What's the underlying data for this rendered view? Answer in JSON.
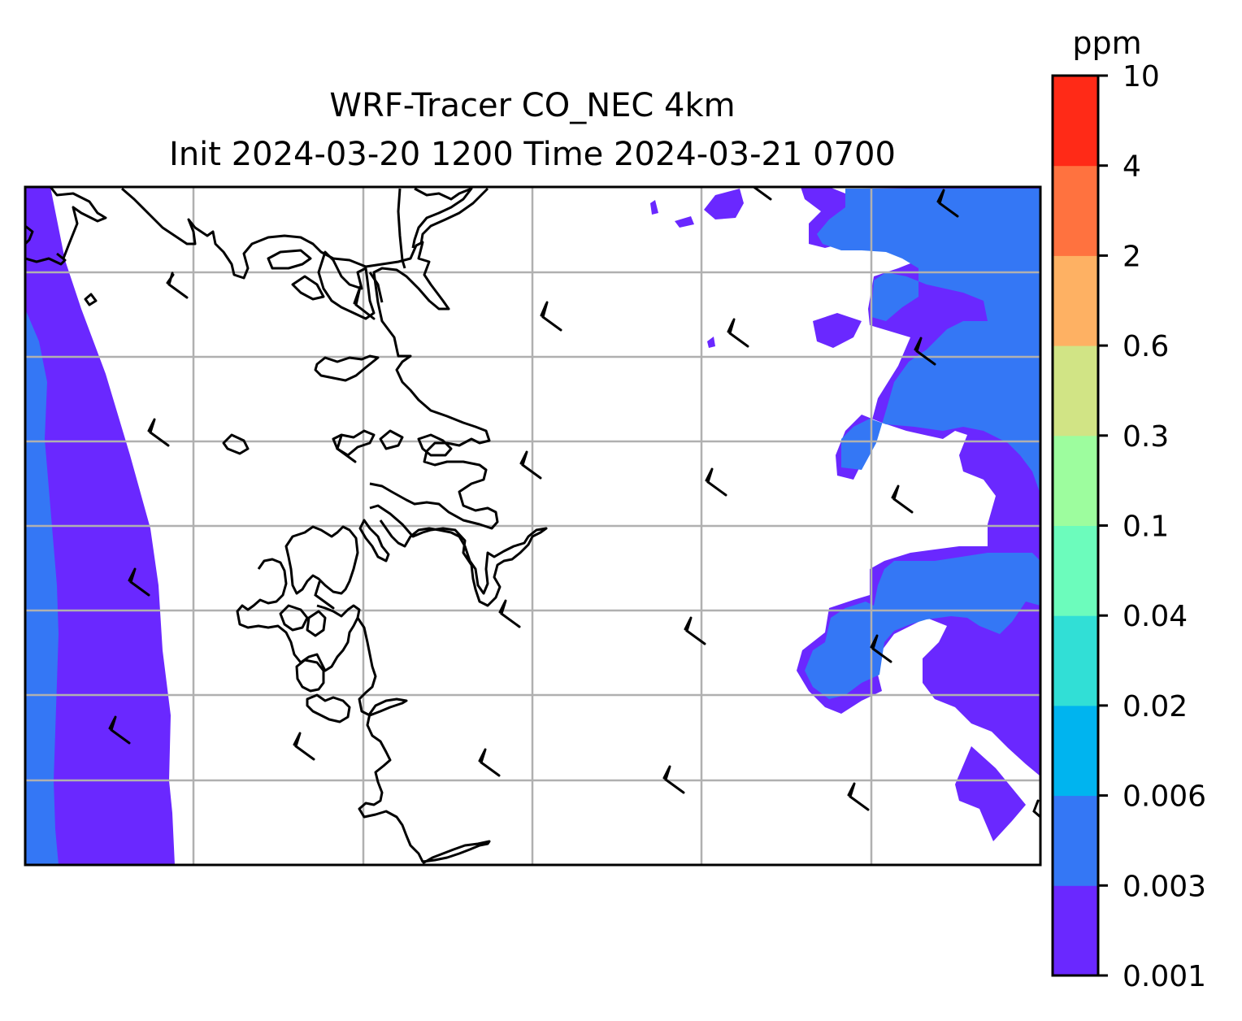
{
  "title": {
    "line1": "WRF-Tracer CO_NEC 4km",
    "line2": "Init 2024-03-20 1200 Time 2024-03-21 0700"
  },
  "colorbar": {
    "unit": "ppm",
    "levels": [
      "0.001",
      "0.003",
      "0.006",
      "0.02",
      "0.04",
      "0.1",
      "0.3",
      "0.6",
      "2",
      "4",
      "10"
    ],
    "colors": [
      "#6a28ff",
      "#3477f5",
      "#00b4ef",
      "#31dfd6",
      "#6cfcbc",
      "#9dfd9e",
      "#d1e485",
      "#feb163",
      "#ff723f",
      "#ff2a17"
    ]
  },
  "map": {
    "fill_band_colors": [
      "#6a28ff",
      "#3477f5"
    ],
    "gridline_color": "#b0b0b0",
    "coastline_color": "#000000",
    "wind_barb_color": "#000000"
  }
}
